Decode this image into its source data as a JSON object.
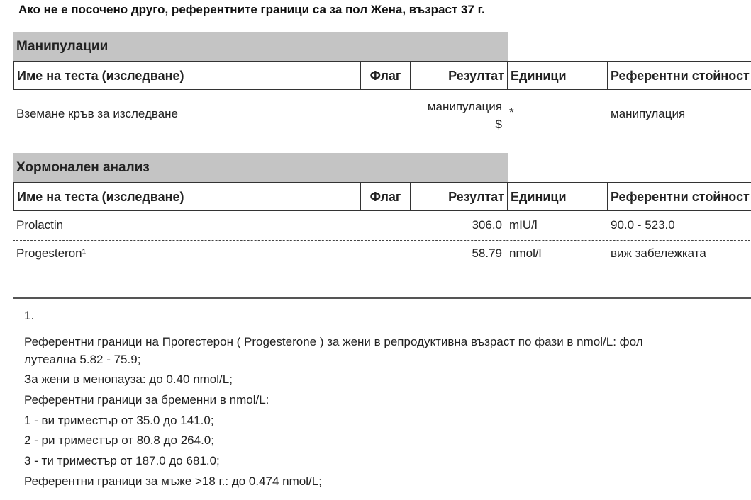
{
  "header_note": "Ако не е посочено друго, референтните граници са за пол Жена, възраст 37 г.",
  "columns": {
    "name": "Име на теста (изследване)",
    "flag": "Флаг",
    "result": "Резултат",
    "units": "Единици",
    "reference": "Референтни стойност"
  },
  "sections": [
    {
      "title": "Манипулации",
      "rows": [
        {
          "name": "Вземане кръв за изследване",
          "flag": "",
          "result": "манипулация",
          "result_suffix": "$",
          "units": "*",
          "reference": "манипулация"
        }
      ]
    },
    {
      "title": "Хормонален анализ",
      "rows": [
        {
          "name": "Prolactin",
          "flag": "",
          "result": "306.0",
          "units": "mIU/l",
          "reference": "90.0 - 523.0"
        },
        {
          "name": "Progesteron¹",
          "flag": "",
          "result": "58.79",
          "units": "nmol/l",
          "reference": "виж забележката"
        }
      ]
    }
  ],
  "footnote": {
    "number": "1.",
    "lines": [
      "Референтни граници на Прогестерон ( Progesterone ) за жени в репродуктивна възраст по фази в nmol/L: фол",
      "лутеална 5.82 - 75.9;",
      "За жени в менопауза: до 0.40 nmol/L;",
      "Референтни граници за бременни в nmol/L:",
      "1 - ви триместър от 35.0 до 141.0;",
      "2 - ри триместър от 80.8 до 264.0;",
      "3 - ти триместър от 187.0 до 681.0;",
      "Референтни граници за мъже >18 г.: до 0.474 nmol/L;"
    ]
  }
}
